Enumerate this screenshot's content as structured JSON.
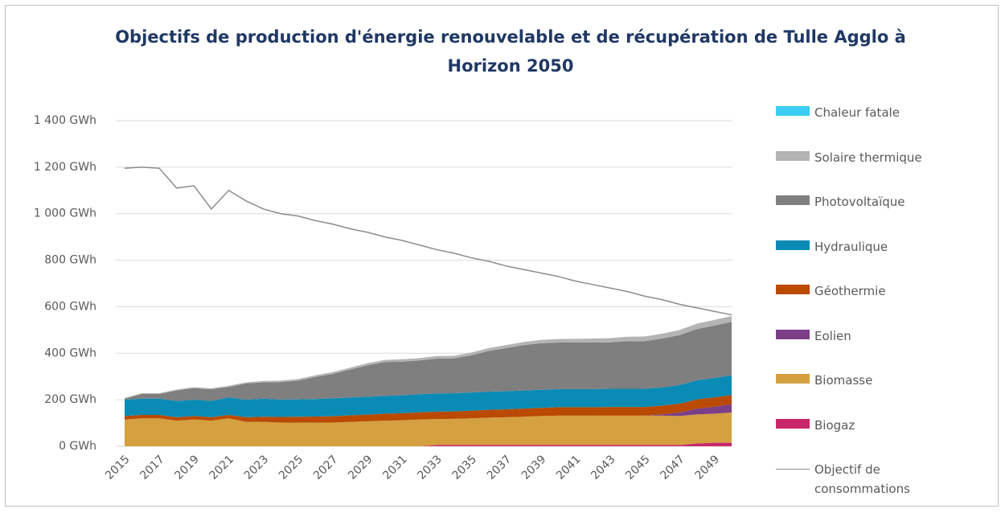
{
  "chart_data": {
    "type": "area",
    "title": "Objectifs de production d'énergie renouvelable et de récupération de Tulle Agglo à Horizon 2050",
    "categories": [
      "2015",
      null,
      "2017",
      null,
      "2019",
      null,
      "2021",
      null,
      "2023",
      null,
      "2025",
      null,
      "2027",
      null,
      "2029",
      null,
      "2031",
      null,
      "2033",
      null,
      "2035",
      null,
      "2037",
      null,
      "2039",
      null,
      "2041",
      null,
      "2043",
      null,
      "2045",
      null,
      "2047",
      null,
      "2049",
      null
    ],
    "ylim": [
      0,
      1400
    ],
    "yticks": [
      {
        "value": 0,
        "label": "0 GWh"
      },
      {
        "value": 200,
        "label": "200 GWh"
      },
      {
        "value": 400,
        "label": "400 GWh"
      },
      {
        "value": 600,
        "label": "600 GWh"
      },
      {
        "value": 800,
        "label": "800 GWh"
      },
      {
        "value": 1000,
        "label": "1 000 GWh"
      },
      {
        "value": 1200,
        "label": "1 200 GWh"
      },
      {
        "value": 1400,
        "label": "1 400 GWh"
      }
    ],
    "grid": true,
    "stacked": true,
    "legend": "right",
    "series": [
      {
        "name": "Biogaz",
        "color": "#c8286a",
        "values": [
          0,
          0,
          0,
          0,
          0,
          0,
          0,
          0,
          0,
          0,
          0,
          0,
          0,
          0,
          0,
          0,
          0,
          0,
          5,
          5,
          5,
          5,
          5,
          5,
          5,
          5,
          5,
          5,
          5,
          5,
          5,
          5,
          5,
          12,
          15,
          15
        ]
      },
      {
        "name": "Biomasse",
        "color": "#d4a040",
        "values": [
          115,
          120,
          120,
          110,
          115,
          110,
          120,
          105,
          105,
          102,
          102,
          102,
          102,
          105,
          107,
          110,
          112,
          115,
          112,
          113,
          115,
          118,
          120,
          122,
          125,
          127,
          127,
          127,
          127,
          127,
          127,
          127,
          125,
          125,
          125,
          130
        ]
      },
      {
        "name": "Eolien",
        "color": "#7c3f87",
        "values": [
          0,
          0,
          0,
          0,
          0,
          0,
          0,
          0,
          0,
          0,
          0,
          0,
          0,
          0,
          0,
          0,
          0,
          0,
          0,
          0,
          0,
          0,
          0,
          0,
          0,
          0,
          0,
          0,
          0,
          0,
          0,
          5,
          15,
          25,
          30,
          35
        ]
      },
      {
        "name": "Géothermie",
        "color": "#b94a00",
        "values": [
          15,
          15,
          15,
          15,
          15,
          15,
          15,
          20,
          22,
          24,
          25,
          26,
          27,
          28,
          29,
          30,
          30,
          31,
          32,
          32,
          33,
          34,
          34,
          35,
          35,
          36,
          36,
          36,
          37,
          37,
          37,
          38,
          38,
          40,
          40,
          40
        ]
      },
      {
        "name": "Hydraulique",
        "color": "#0a8bb5",
        "values": [
          70,
          70,
          70,
          70,
          70,
          70,
          75,
          75,
          78,
          75,
          75,
          75,
          77,
          77,
          77,
          77,
          77,
          78,
          78,
          78,
          78,
          78,
          78,
          78,
          78,
          78,
          78,
          78,
          78,
          78,
          78,
          78,
          80,
          82,
          84,
          85
        ]
      },
      {
        "name": "Photovoltaïque",
        "color": "#7f7f7f",
        "values": [
          5,
          20,
          20,
          45,
          50,
          50,
          45,
          70,
          70,
          75,
          80,
          95,
          105,
          120,
          135,
          145,
          145,
          145,
          150,
          150,
          160,
          175,
          185,
          195,
          200,
          200,
          200,
          200,
          200,
          205,
          205,
          210,
          215,
          220,
          225,
          230
        ]
      },
      {
        "name": "Solaire thermique",
        "color": "#b4b4b4",
        "values": [
          3,
          3,
          3,
          4,
          4,
          4,
          5,
          5,
          6,
          6,
          7,
          7,
          8,
          8,
          9,
          9,
          10,
          10,
          11,
          11,
          12,
          12,
          13,
          13,
          14,
          15,
          16,
          17,
          18,
          19,
          20,
          21,
          22,
          23,
          24,
          25
        ]
      },
      {
        "name": "Chaleur fatale",
        "color": "#3ccdf2",
        "values": [
          0,
          0,
          0,
          0,
          0,
          0,
          0,
          0,
          0,
          0,
          0,
          0,
          0,
          0,
          0,
          0,
          0,
          0,
          0,
          0,
          0,
          0,
          0,
          0,
          0,
          0,
          0,
          0,
          0,
          0,
          0,
          0,
          0,
          0,
          0,
          0
        ]
      },
      {
        "name": "Objectif de consommations",
        "color": "#8c8c8c",
        "type": "line",
        "values": [
          1195,
          1200,
          1195,
          1110,
          1120,
          1020,
          1100,
          1055,
          1020,
          1000,
          990,
          970,
          955,
          935,
          920,
          900,
          885,
          865,
          845,
          830,
          810,
          795,
          775,
          760,
          745,
          730,
          710,
          695,
          680,
          665,
          645,
          630,
          610,
          595,
          580,
          565
        ]
      }
    ]
  }
}
